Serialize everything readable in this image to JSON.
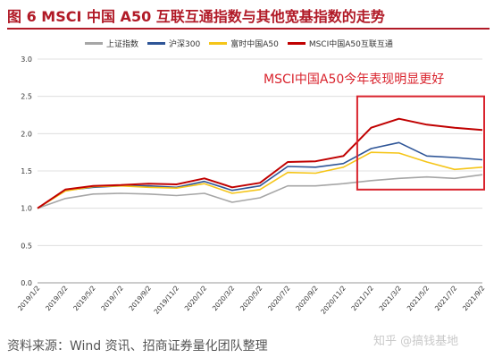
{
  "figure": {
    "title": "图 6 MSCI 中国 A50 互联互通指数与其他宽基指数的走势",
    "annotation": "MSCI中国A50今年表现明显更好",
    "source": "资料来源：Wind 资讯、招商证券量化团队整理",
    "watermark": "知乎 @搞钱基地"
  },
  "colors": {
    "title_red": "#b11a27",
    "highlight_box": "#d9232d",
    "grid": "#d9d9d9"
  },
  "chart_data": {
    "type": "line",
    "ylim": [
      0.0,
      3.0
    ],
    "yticks": [
      "0.0",
      "0.5",
      "1.0",
      "1.5",
      "2.0",
      "2.5",
      "3.0"
    ],
    "xlabel": "",
    "ylabel": "",
    "x": [
      "2019/1/2",
      "2019/3/2",
      "2019/5/2",
      "2019/7/2",
      "2019/9/2",
      "2019/11/2",
      "2020/1/2",
      "2020/3/2",
      "2020/5/2",
      "2020/7/2",
      "2020/9/2",
      "2020/11/2",
      "2021/1/2",
      "2021/3/2",
      "2021/5/2",
      "2021/7/2",
      "2021/9/2"
    ],
    "highlight_range": [
      "2020/12/2",
      "2021/10/1"
    ],
    "series": [
      {
        "name": "上证指数",
        "color": "#a6a6a6",
        "values": [
          1.0,
          1.13,
          1.19,
          1.2,
          1.19,
          1.17,
          1.2,
          1.08,
          1.14,
          1.3,
          1.3,
          1.33,
          1.37,
          1.4,
          1.42,
          1.4,
          1.45
        ]
      },
      {
        "name": "沪深300",
        "color": "#2e5597",
        "values": [
          1.0,
          1.24,
          1.28,
          1.3,
          1.3,
          1.28,
          1.36,
          1.24,
          1.3,
          1.56,
          1.55,
          1.6,
          1.8,
          1.88,
          1.7,
          1.68,
          1.65
        ]
      },
      {
        "name": "富时中国A50",
        "color": "#f5c518",
        "values": [
          1.0,
          1.23,
          1.29,
          1.3,
          1.28,
          1.27,
          1.33,
          1.2,
          1.25,
          1.48,
          1.47,
          1.55,
          1.75,
          1.74,
          1.62,
          1.52,
          1.55
        ]
      },
      {
        "name": "MSCI中国A50互联互通",
        "color": "#c00000",
        "values": [
          1.0,
          1.25,
          1.3,
          1.31,
          1.33,
          1.32,
          1.4,
          1.28,
          1.34,
          1.62,
          1.63,
          1.7,
          2.08,
          2.2,
          2.12,
          2.08,
          2.05
        ]
      }
    ]
  }
}
